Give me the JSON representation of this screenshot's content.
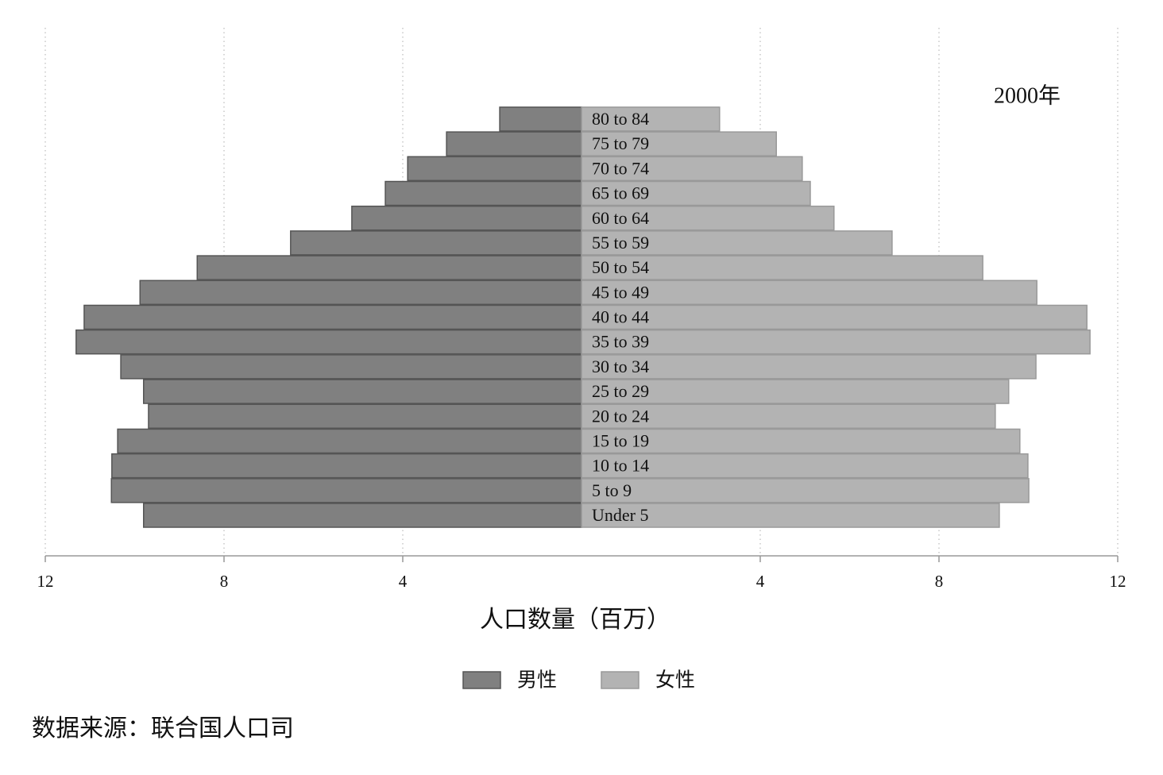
{
  "chart_data": {
    "type": "bar",
    "orientation": "horizontal",
    "layout": "pyramid",
    "annotation": "2000年",
    "xlabel": "人口数量（百万）",
    "categories": [
      "Under 5",
      "5 to 9",
      "10 to 14",
      "15 to 19",
      "20 to 24",
      "25 to 29",
      "30 to 34",
      "35 to 39",
      "40 to 44",
      "45 to 49",
      "50 to 54",
      "55 to 59",
      "60 to 64",
      "65 to 69",
      "70 to 74",
      "75 to 79",
      "80 to 84"
    ],
    "series": [
      {
        "name": "男性",
        "color": "#808080",
        "side": "left",
        "values": [
          9.8,
          10.52,
          10.51,
          10.38,
          9.69,
          9.8,
          10.31,
          11.31,
          11.13,
          9.88,
          8.6,
          6.51,
          5.14,
          4.39,
          3.89,
          3.02,
          1.83
        ]
      },
      {
        "name": "女性",
        "color": "#b3b3b3",
        "side": "right",
        "values": [
          9.35,
          10.01,
          9.99,
          9.81,
          9.26,
          9.56,
          10.17,
          11.38,
          11.31,
          10.19,
          8.98,
          6.95,
          5.65,
          5.12,
          4.94,
          4.36,
          3.09
        ]
      }
    ],
    "xlim": [
      0,
      12
    ],
    "xticks": [
      4,
      8,
      12
    ],
    "grid": true
  },
  "source": "数据来源：联合国人口司"
}
